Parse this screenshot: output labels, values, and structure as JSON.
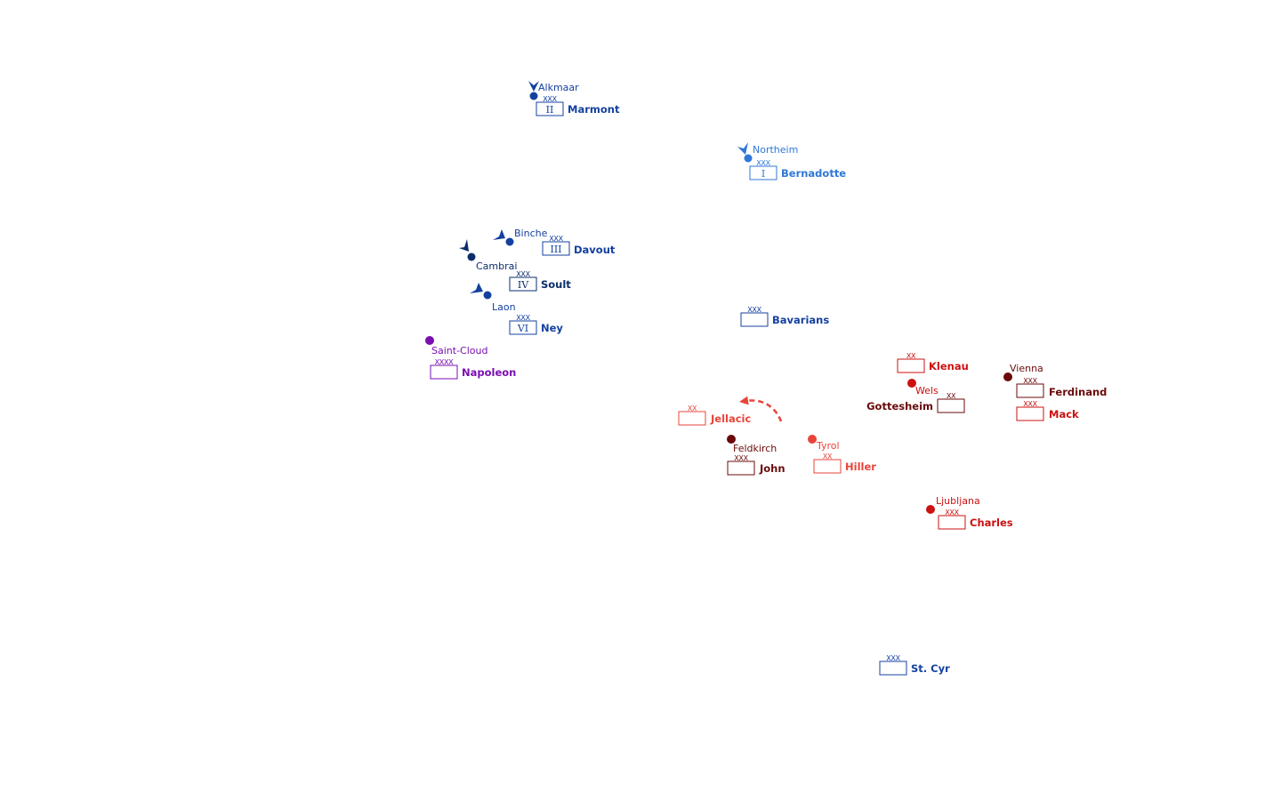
{
  "colors": {
    "french_dark": "#0b2e6b",
    "french": "#1441a0",
    "french_light": "#2f77d6",
    "imperial": "#7a0fb0",
    "austrian_dark": "#6b0a0a",
    "austrian": "#cc1111",
    "austrian_light": "#e8443a"
  },
  "places": [
    {
      "id": "alkmaar",
      "name": "Alkmaar",
      "color": "french"
    },
    {
      "id": "northeim",
      "name": "Northeim",
      "color": "french_light"
    },
    {
      "id": "binche",
      "name": "Binche",
      "color": "french"
    },
    {
      "id": "cambrai",
      "name": "Cambrai",
      "color": "french_dark"
    },
    {
      "id": "laon",
      "name": "Laon",
      "color": "french"
    },
    {
      "id": "saint-cloud",
      "name": "Saint-Cloud",
      "color": "imperial"
    },
    {
      "id": "vienna",
      "name": "Vienna",
      "color": "austrian_dark"
    },
    {
      "id": "wels",
      "name": "Wels",
      "color": "austrian_dark"
    },
    {
      "id": "feldkirch",
      "name": "Feldkirch",
      "color": "austrian_dark"
    },
    {
      "id": "tyrol",
      "name": "Tyrol",
      "color": "austrian_light"
    },
    {
      "id": "ljubljana",
      "name": "Ljubljana",
      "color": "austrian_dark"
    }
  ],
  "units": [
    {
      "id": "marmont",
      "commander": "Marmont",
      "echelon": "XXX",
      "corps": "II",
      "color": "french"
    },
    {
      "id": "bernadotte",
      "commander": "Bernadotte",
      "echelon": "XXX",
      "corps": "I",
      "color": "french_light"
    },
    {
      "id": "davout",
      "commander": "Davout",
      "echelon": "XXX",
      "corps": "III",
      "color": "french"
    },
    {
      "id": "soult",
      "commander": "Soult",
      "echelon": "XXX",
      "corps": "IV",
      "color": "french_dark"
    },
    {
      "id": "ney",
      "commander": "Ney",
      "echelon": "XXX",
      "corps": "VI",
      "color": "french"
    },
    {
      "id": "bavarians",
      "commander": "Bavarians",
      "echelon": "XXX",
      "corps": "",
      "color": "french"
    },
    {
      "id": "napoleon",
      "commander": "Napoleon",
      "echelon": "XXXX",
      "corps": "",
      "color": "imperial"
    },
    {
      "id": "klenau",
      "commander": "Klenau",
      "echelon": "XX",
      "corps": "",
      "color": "austrian"
    },
    {
      "id": "ferdinand",
      "commander": "Ferdinand",
      "echelon": "XXX",
      "corps": "",
      "color": "austrian_dark"
    },
    {
      "id": "gottesheim",
      "commander": "Gottesheim",
      "echelon": "XX",
      "corps": "",
      "color": "austrian_dark"
    },
    {
      "id": "mack",
      "commander": "Mack",
      "echelon": "XXX",
      "corps": "",
      "color": "austrian"
    },
    {
      "id": "jellacic",
      "commander": "Jellacic",
      "echelon": "XX",
      "corps": "",
      "color": "austrian_light"
    },
    {
      "id": "john",
      "commander": "John",
      "echelon": "XXX",
      "corps": "",
      "color": "austrian_dark"
    },
    {
      "id": "hiller",
      "commander": "Hiller",
      "echelon": "XX",
      "corps": "",
      "color": "austrian_light"
    },
    {
      "id": "charles",
      "commander": "Charles",
      "echelon": "XXX",
      "corps": "",
      "color": "austrian"
    },
    {
      "id": "st-cyr",
      "commander": "St. Cyr",
      "echelon": "XXX",
      "corps": "",
      "color": "french"
    }
  ]
}
